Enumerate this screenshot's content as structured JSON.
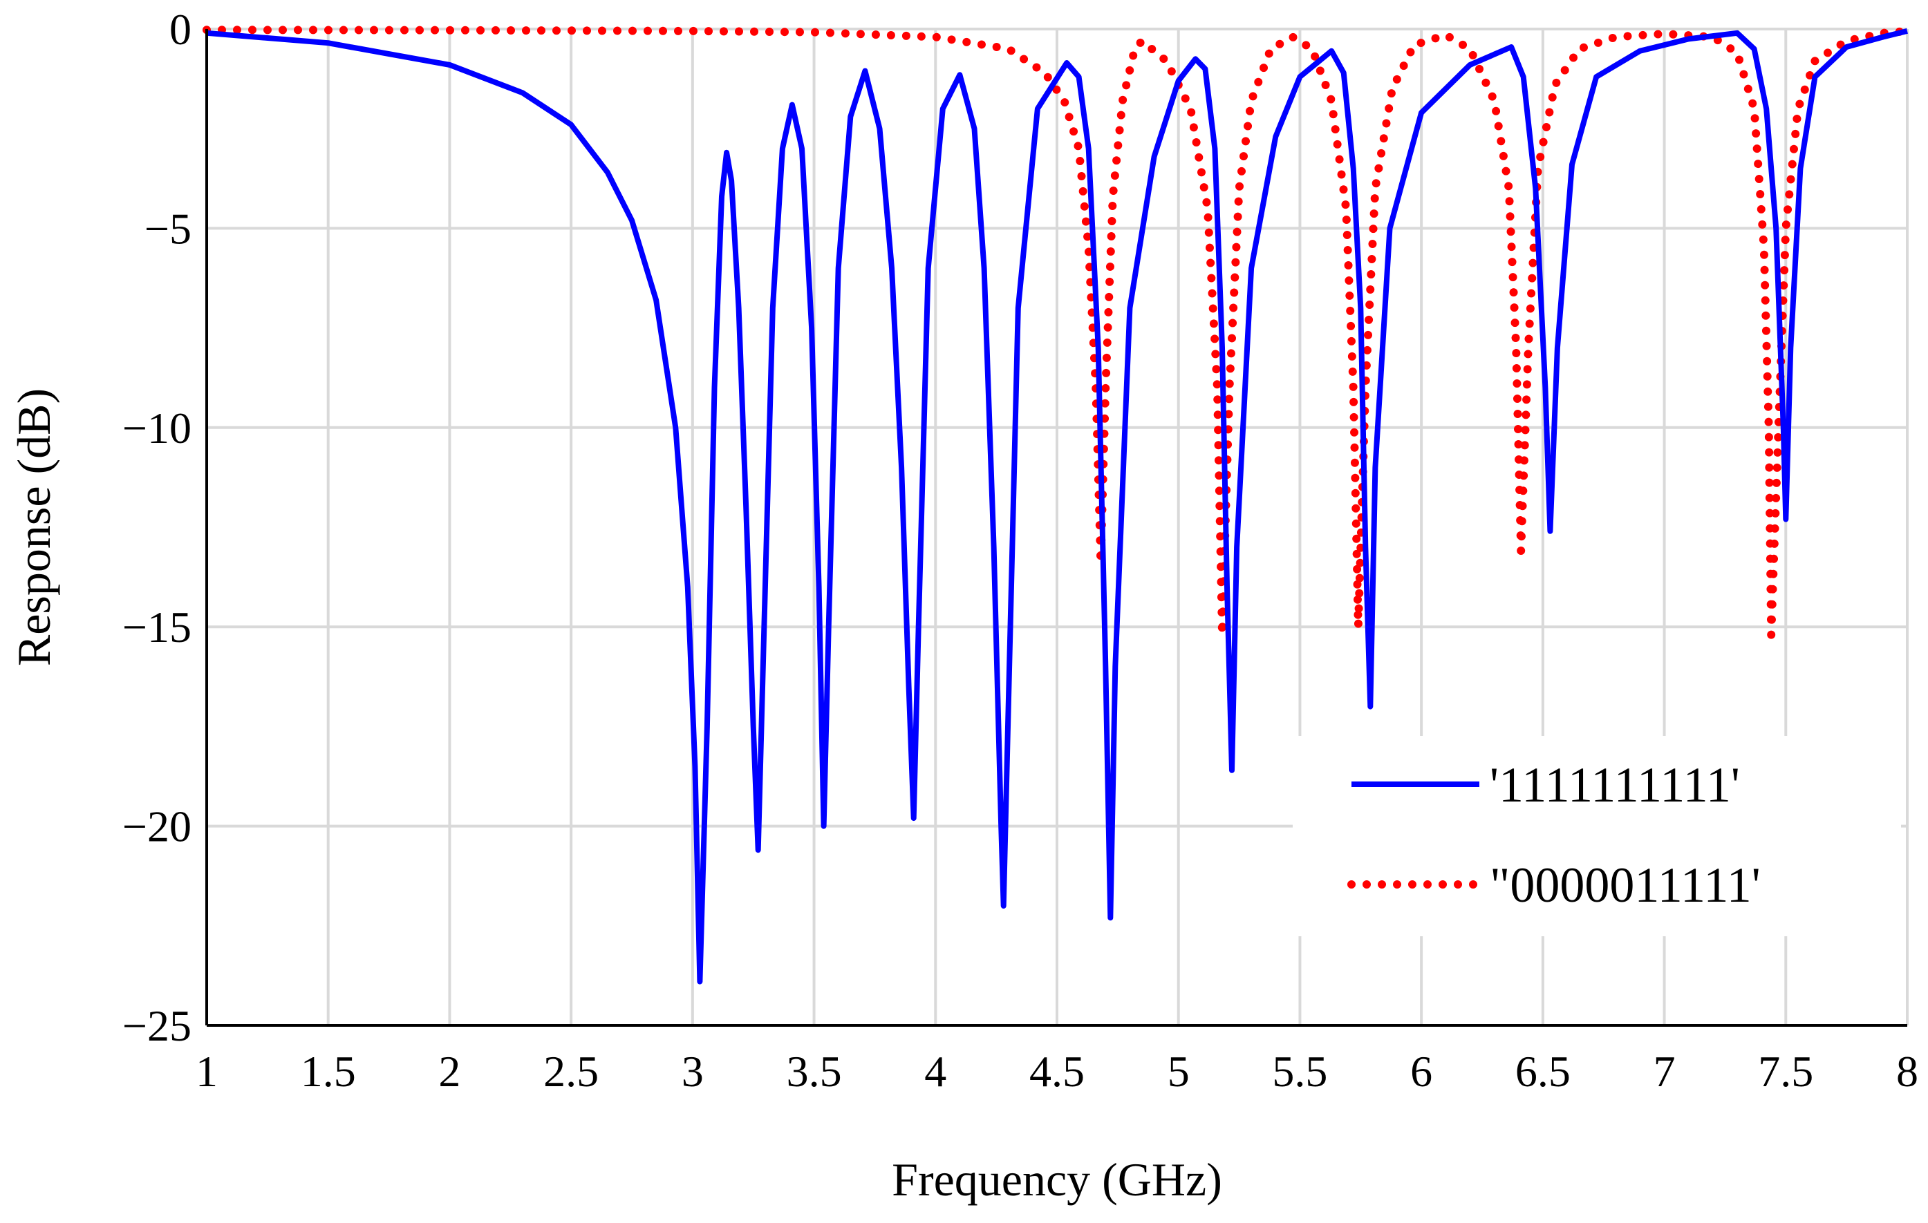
{
  "chart_data": {
    "type": "line",
    "title": "",
    "xlabel": "Frequency (GHz)",
    "ylabel": "Response (dB)",
    "xlim": [
      1,
      8
    ],
    "ylim": [
      -25,
      0
    ],
    "x_ticks": [
      1,
      1.5,
      2,
      2.5,
      3,
      3.5,
      4,
      4.5,
      5,
      5.5,
      6,
      6.5,
      7,
      7.5,
      8
    ],
    "x_tick_labels": [
      "1",
      "1.5",
      "2",
      "2.5",
      "3",
      "3.5",
      "4",
      "4.5",
      "5",
      "5.5",
      "6",
      "6.5",
      "7",
      "7.5",
      "8"
    ],
    "y_ticks": [
      0,
      -5,
      -10,
      -15,
      -20,
      -25
    ],
    "y_tick_labels": [
      "0",
      "−5",
      "−10",
      "−15",
      "−20",
      "−25"
    ],
    "grid": true,
    "legend_position": "bottom-right",
    "series": [
      {
        "name": "'1111111111'",
        "color": "#0000ff",
        "style": "solid",
        "points": [
          [
            1.0,
            -0.1
          ],
          [
            1.5,
            -0.35
          ],
          [
            2.0,
            -0.9
          ],
          [
            2.3,
            -1.6
          ],
          [
            2.5,
            -2.4
          ],
          [
            2.65,
            -3.6
          ],
          [
            2.75,
            -4.8
          ],
          [
            2.85,
            -6.8
          ],
          [
            2.93,
            -10.0
          ],
          [
            2.98,
            -14.0
          ],
          [
            3.01,
            -18.5
          ],
          [
            3.03,
            -23.9
          ],
          [
            3.06,
            -17.5
          ],
          [
            3.09,
            -9.0
          ],
          [
            3.12,
            -4.2
          ],
          [
            3.14,
            -3.1
          ],
          [
            3.16,
            -3.8
          ],
          [
            3.19,
            -7.0
          ],
          [
            3.22,
            -12.0
          ],
          [
            3.25,
            -17.5
          ],
          [
            3.27,
            -20.6
          ],
          [
            3.29,
            -16.0
          ],
          [
            3.33,
            -7.0
          ],
          [
            3.37,
            -3.0
          ],
          [
            3.41,
            -1.9
          ],
          [
            3.45,
            -3.0
          ],
          [
            3.49,
            -7.5
          ],
          [
            3.52,
            -14.0
          ],
          [
            3.54,
            -20.0
          ],
          [
            3.56,
            -15.0
          ],
          [
            3.6,
            -6.0
          ],
          [
            3.65,
            -2.2
          ],
          [
            3.71,
            -1.05
          ],
          [
            3.77,
            -2.5
          ],
          [
            3.82,
            -6.0
          ],
          [
            3.86,
            -11.0
          ],
          [
            3.89,
            -16.5
          ],
          [
            3.91,
            -19.8
          ],
          [
            3.93,
            -15.0
          ],
          [
            3.97,
            -6.0
          ],
          [
            4.03,
            -2.0
          ],
          [
            4.1,
            -1.15
          ],
          [
            4.16,
            -2.5
          ],
          [
            4.2,
            -6.0
          ],
          [
            4.24,
            -13.0
          ],
          [
            4.27,
            -20.0
          ],
          [
            4.28,
            -22.0
          ],
          [
            4.3,
            -17.0
          ],
          [
            4.34,
            -7.0
          ],
          [
            4.42,
            -2.0
          ],
          [
            4.54,
            -0.85
          ],
          [
            4.59,
            -1.2
          ],
          [
            4.63,
            -3.0
          ],
          [
            4.67,
            -8.0
          ],
          [
            4.7,
            -16.0
          ],
          [
            4.72,
            -22.3
          ],
          [
            4.74,
            -16.0
          ],
          [
            4.8,
            -7.0
          ],
          [
            4.9,
            -3.2
          ],
          [
            5.0,
            -1.3
          ],
          [
            5.07,
            -0.75
          ],
          [
            5.11,
            -1.0
          ],
          [
            5.15,
            -3.0
          ],
          [
            5.18,
            -8.0
          ],
          [
            5.2,
            -14.0
          ],
          [
            5.22,
            -18.6
          ],
          [
            5.24,
            -13.0
          ],
          [
            5.3,
            -6.0
          ],
          [
            5.4,
            -2.7
          ],
          [
            5.5,
            -1.2
          ],
          [
            5.63,
            -0.55
          ],
          [
            5.68,
            -1.1
          ],
          [
            5.72,
            -3.5
          ],
          [
            5.75,
            -7.0
          ],
          [
            5.77,
            -13.0
          ],
          [
            5.79,
            -17.0
          ],
          [
            5.81,
            -11.0
          ],
          [
            5.87,
            -5.0
          ],
          [
            6.0,
            -2.1
          ],
          [
            6.2,
            -0.9
          ],
          [
            6.37,
            -0.45
          ],
          [
            6.42,
            -1.2
          ],
          [
            6.47,
            -4.0
          ],
          [
            6.51,
            -9.0
          ],
          [
            6.53,
            -12.6
          ],
          [
            6.56,
            -8.0
          ],
          [
            6.62,
            -3.4
          ],
          [
            6.72,
            -1.2
          ],
          [
            6.9,
            -0.55
          ],
          [
            7.1,
            -0.25
          ],
          [
            7.3,
            -0.1
          ],
          [
            7.37,
            -0.5
          ],
          [
            7.42,
            -2.0
          ],
          [
            7.46,
            -5.0
          ],
          [
            7.49,
            -10.0
          ],
          [
            7.5,
            -12.3
          ],
          [
            7.52,
            -8.0
          ],
          [
            7.56,
            -3.5
          ],
          [
            7.62,
            -1.2
          ],
          [
            7.75,
            -0.45
          ],
          [
            7.9,
            -0.2
          ],
          [
            8.0,
            -0.05
          ]
        ]
      },
      {
        "name": "\"0000011111'",
        "color": "#ff0000",
        "style": "dotted",
        "points": [
          [
            1.0,
            -0.02
          ],
          [
            2.0,
            -0.03
          ],
          [
            3.0,
            -0.05
          ],
          [
            3.5,
            -0.08
          ],
          [
            4.0,
            -0.2
          ],
          [
            4.3,
            -0.5
          ],
          [
            4.45,
            -1.1
          ],
          [
            4.53,
            -1.8
          ],
          [
            4.59,
            -3.0
          ],
          [
            4.63,
            -5.5
          ],
          [
            4.66,
            -9.0
          ],
          [
            4.68,
            -13.4
          ],
          [
            4.7,
            -9.0
          ],
          [
            4.73,
            -4.2
          ],
          [
            4.77,
            -1.8
          ],
          [
            4.82,
            -0.5
          ],
          [
            4.85,
            -0.3
          ],
          [
            4.95,
            -0.8
          ],
          [
            5.05,
            -2.0
          ],
          [
            5.12,
            -4.5
          ],
          [
            5.16,
            -9.0
          ],
          [
            5.18,
            -15.2
          ],
          [
            5.21,
            -9.0
          ],
          [
            5.25,
            -4.0
          ],
          [
            5.3,
            -1.8
          ],
          [
            5.38,
            -0.5
          ],
          [
            5.47,
            -0.2
          ],
          [
            5.55,
            -0.5
          ],
          [
            5.63,
            -1.8
          ],
          [
            5.69,
            -4.5
          ],
          [
            5.72,
            -9.0
          ],
          [
            5.74,
            -15.0
          ],
          [
            5.77,
            -9.0
          ],
          [
            5.81,
            -4.0
          ],
          [
            5.88,
            -1.5
          ],
          [
            5.97,
            -0.4
          ],
          [
            6.1,
            -0.15
          ],
          [
            6.2,
            -0.5
          ],
          [
            6.3,
            -1.8
          ],
          [
            6.36,
            -4.0
          ],
          [
            6.39,
            -8.0
          ],
          [
            6.41,
            -13.1
          ],
          [
            6.44,
            -8.0
          ],
          [
            6.48,
            -3.5
          ],
          [
            6.55,
            -1.4
          ],
          [
            6.65,
            -0.5
          ],
          [
            6.8,
            -0.2
          ],
          [
            7.0,
            -0.12
          ],
          [
            7.2,
            -0.2
          ],
          [
            7.3,
            -0.6
          ],
          [
            7.37,
            -2.0
          ],
          [
            7.41,
            -5.5
          ],
          [
            7.43,
            -10.0
          ],
          [
            7.44,
            -15.2
          ],
          [
            7.47,
            -10.0
          ],
          [
            7.5,
            -5.0
          ],
          [
            7.55,
            -2.0
          ],
          [
            7.62,
            -0.8
          ],
          [
            7.75,
            -0.3
          ],
          [
            7.9,
            -0.1
          ],
          [
            8.0,
            -0.05
          ]
        ]
      }
    ]
  }
}
